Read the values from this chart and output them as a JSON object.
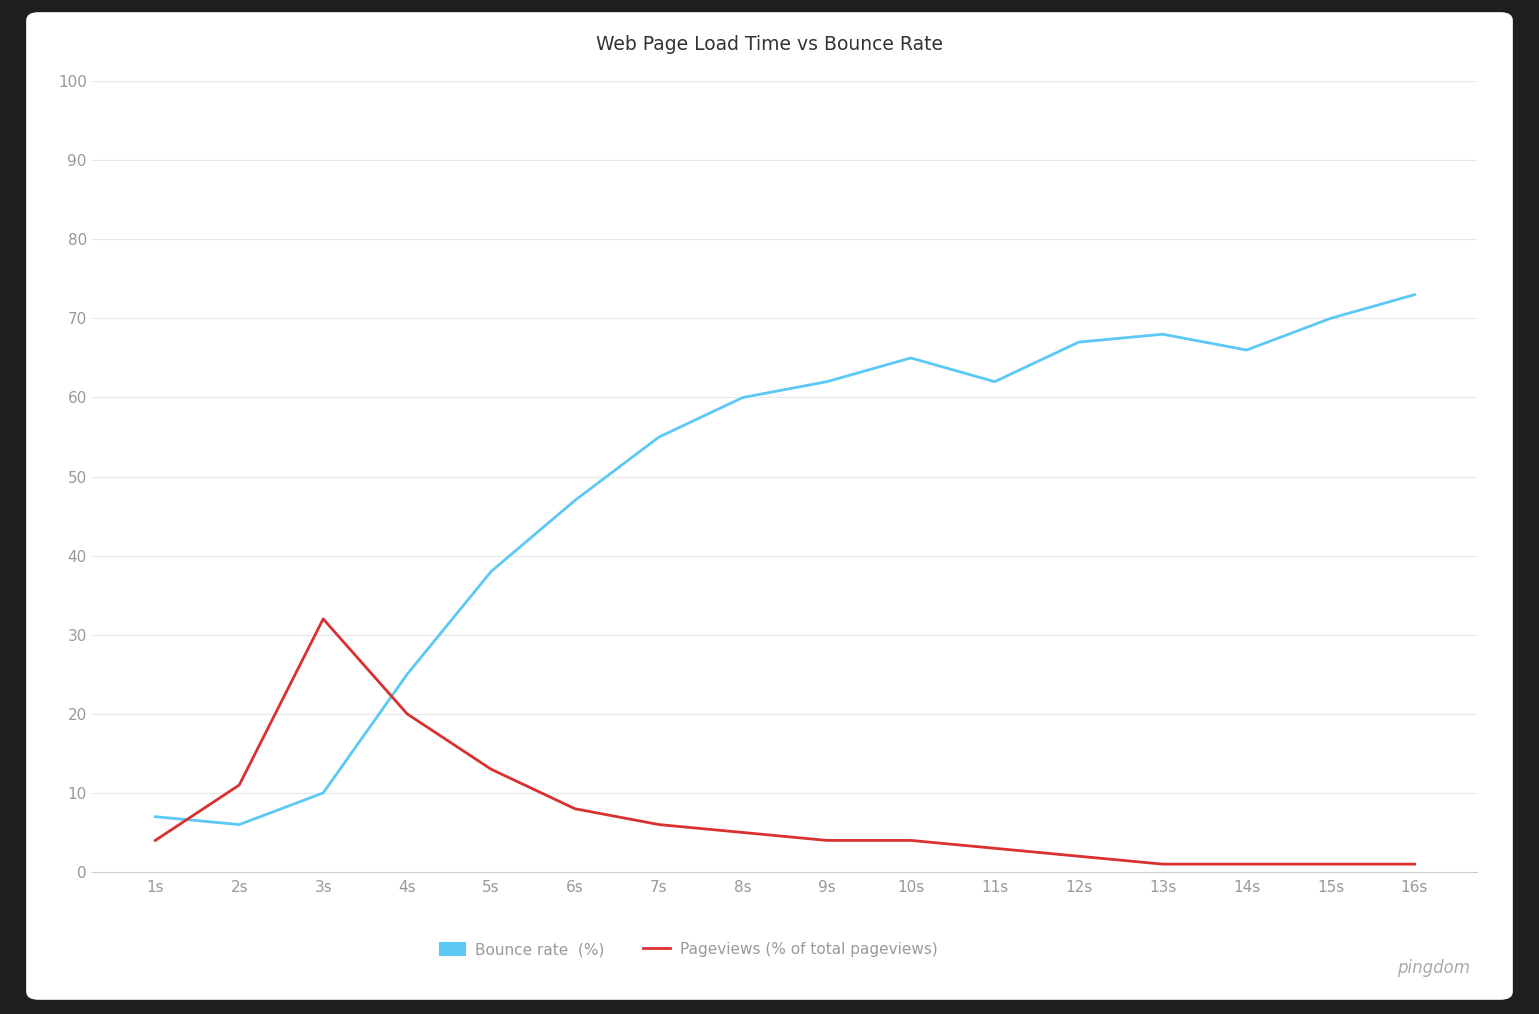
{
  "title": "Web Page Load Time vs Bounce Rate",
  "x_labels": [
    "1s",
    "2s",
    "3s",
    "4s",
    "5s",
    "6s",
    "7s",
    "8s",
    "9s",
    "10s",
    "11s",
    "12s",
    "13s",
    "14s",
    "15s",
    "16s"
  ],
  "bounce_rate": [
    7,
    6,
    10,
    25,
    38,
    47,
    55,
    60,
    62,
    65,
    62,
    67,
    68,
    66,
    70,
    73
  ],
  "pageviews": [
    4,
    11,
    32,
    20,
    13,
    8,
    6,
    5,
    4,
    4,
    3,
    2,
    1,
    1,
    1,
    1
  ],
  "bounce_color": "#5bc8f5",
  "pageviews_color": "#d93030",
  "background_outer": "#ffffff",
  "background_chart": "#ffffff",
  "title_color": "#333333",
  "tick_color": "#999999",
  "grid_color": "#e8e8e8",
  "border_color": "#2a2a2a",
  "ylim": [
    0,
    100
  ],
  "y_ticks": [
    0,
    10,
    20,
    30,
    40,
    50,
    60,
    70,
    80,
    90,
    100
  ],
  "legend_bounce_label": "Bounce rate  (%)",
  "legend_pageviews_label": "Pageviews (% of total pageviews)",
  "watermark_text": "pingdom",
  "watermark_color": "#aaaaaa"
}
